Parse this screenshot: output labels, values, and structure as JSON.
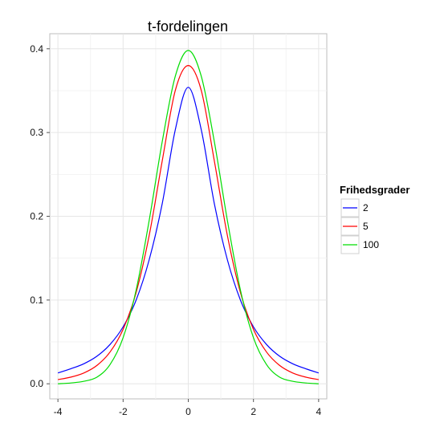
{
  "chart_data": {
    "type": "line",
    "title": "t-fordelingen",
    "xlabel": "",
    "ylabel": "",
    "xlim": [
      -4.25,
      4.25
    ],
    "ylim": [
      -0.018,
      0.418
    ],
    "x_ticks": [
      -4,
      -2,
      0,
      2,
      4
    ],
    "x_tick_labels": [
      "-4",
      "-2",
      "0",
      "2",
      "4"
    ],
    "y_ticks": [
      0.0,
      0.1,
      0.2,
      0.3,
      0.4
    ],
    "y_tick_labels": [
      "0.0",
      "0.1",
      "0.2",
      "0.3",
      "0.4"
    ],
    "grid": true,
    "legend": {
      "title": "Frihedsgrader",
      "placement": "right"
    },
    "x": [
      -4.0,
      -3.6,
      -3.2,
      -2.8,
      -2.4,
      -2.0,
      -1.6,
      -1.2,
      -0.8,
      -0.4,
      0.0,
      0.4,
      0.8,
      1.2,
      1.6,
      2.0,
      2.4,
      2.8,
      3.2,
      3.6,
      4.0
    ],
    "series": [
      {
        "name": "2",
        "color": "#0000ff",
        "values": [
          0.013,
          0.018,
          0.024,
          0.033,
          0.047,
          0.068,
          0.1,
          0.148,
          0.215,
          0.303,
          0.354,
          0.303,
          0.215,
          0.148,
          0.1,
          0.068,
          0.047,
          0.033,
          0.024,
          0.018,
          0.013
        ]
      },
      {
        "name": "5",
        "color": "#ff0000",
        "values": [
          0.005,
          0.008,
          0.013,
          0.022,
          0.038,
          0.065,
          0.109,
          0.177,
          0.266,
          0.35,
          0.38,
          0.35,
          0.266,
          0.177,
          0.109,
          0.065,
          0.038,
          0.022,
          0.013,
          0.008,
          0.005
        ]
      },
      {
        "name": "100",
        "color": "#00dd00",
        "values": [
          0.0,
          0.001,
          0.003,
          0.008,
          0.023,
          0.055,
          0.112,
          0.195,
          0.289,
          0.367,
          0.398,
          0.367,
          0.289,
          0.195,
          0.112,
          0.055,
          0.023,
          0.008,
          0.003,
          0.001,
          0.0
        ]
      }
    ]
  }
}
